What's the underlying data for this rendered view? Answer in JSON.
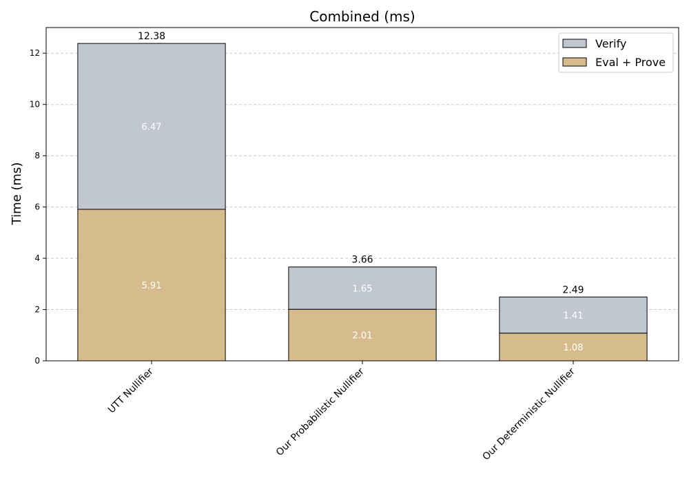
{
  "chart_data": {
    "type": "bar",
    "stacked": true,
    "title": "Combined (ms)",
    "xlabel": "",
    "ylabel": "Time (ms)",
    "ylim": [
      0,
      13
    ],
    "yticks": [
      0,
      2,
      4,
      6,
      8,
      10,
      12
    ],
    "grid": "y-dashed",
    "legend_position": "top-right",
    "categories": [
      "UTT Nullifier",
      "Our Probabilistic Nullifier",
      "Our Deterministic Nullifier"
    ],
    "series": [
      {
        "name": "Eval + Prove",
        "values": [
          5.91,
          2.01,
          1.08
        ],
        "labels": [
          "5.91",
          "2.01",
          "1.08"
        ],
        "color": "#d6bb8c"
      },
      {
        "name": "Verify",
        "values": [
          6.47,
          1.65,
          1.41
        ],
        "labels": [
          "6.47",
          "1.65",
          "1.41"
        ],
        "color": "#c1c7cf"
      }
    ],
    "totals": [
      "12.38",
      "3.66",
      "2.49"
    ]
  }
}
